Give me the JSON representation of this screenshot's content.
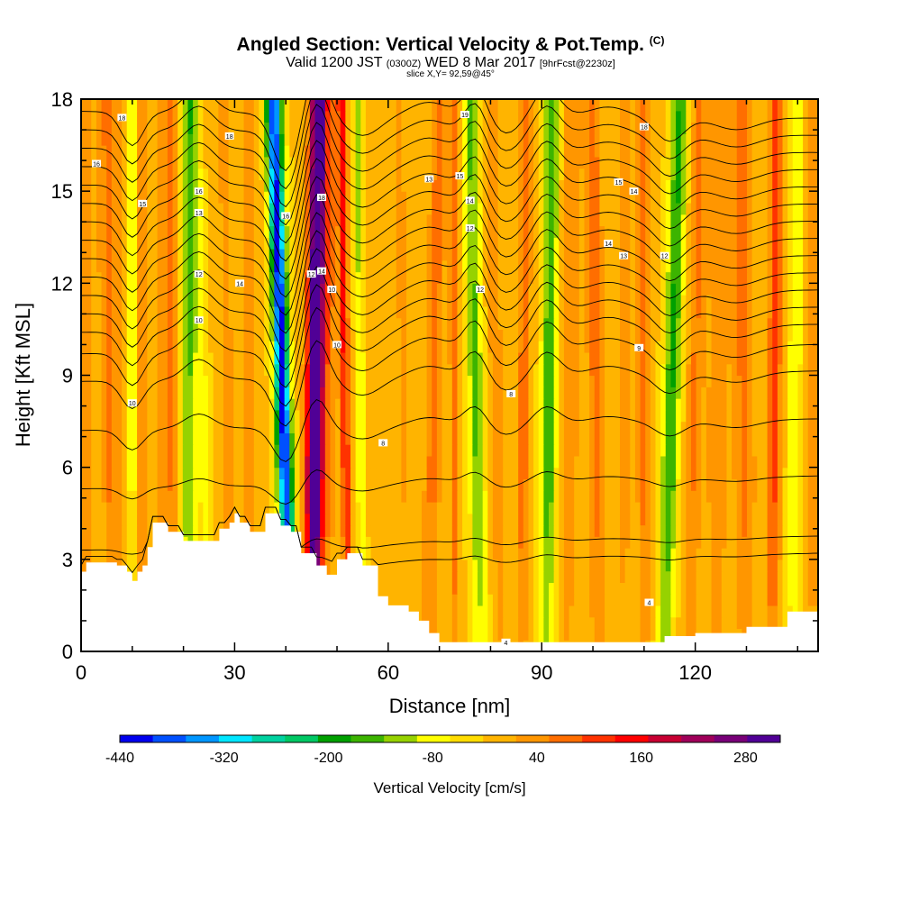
{
  "header": {
    "title_main": "Angled Section: Vertical Velocity & Pot.Temp.",
    "title_suffix": "(C)",
    "valid_prefix": "Valid 1200 JST",
    "valid_utc": "(0300Z)",
    "valid_date": "WED 8 Mar 2017",
    "valid_fcst": "[9hrFcst@2230z]",
    "slice": "slice X,Y= 92,59@45°"
  },
  "chart_data": {
    "type": "heatmap",
    "xlabel": "Distance [nm]",
    "ylabel": "Height [Kft MSL]",
    "xlim": [
      0,
      144
    ],
    "ylim": [
      0,
      18
    ],
    "x_ticks": [
      0,
      30,
      60,
      90,
      120
    ],
    "y_ticks": [
      0,
      3,
      6,
      9,
      12,
      15,
      18
    ],
    "colorbar": {
      "label": "Vertical Velocity [cm/s]",
      "tick_values": [
        -440,
        -320,
        -200,
        -80,
        40,
        160,
        280
      ],
      "bin_edges": [
        -440,
        -400,
        -360,
        -320,
        -280,
        -240,
        -200,
        -160,
        -120,
        -80,
        -40,
        0,
        40,
        80,
        120,
        160,
        200,
        240,
        280,
        320
      ],
      "colors": [
        "#0000ee",
        "#0050ff",
        "#0096ff",
        "#00e6ff",
        "#00d2a0",
        "#00c864",
        "#00a000",
        "#3cb400",
        "#96d200",
        "#ffff00",
        "#ffdc00",
        "#ffb400",
        "#ff9600",
        "#ff6e00",
        "#ff3200",
        "#ff0000",
        "#c80032",
        "#a0005a",
        "#780078",
        "#500096"
      ]
    },
    "background_velocity": 5,
    "velocity_columns": [
      {
        "x": 1,
        "v": 70,
        "w": 0.9,
        "x_top": 1
      },
      {
        "x": 3,
        "v": 30,
        "w": 1.5,
        "x_top": 3
      },
      {
        "x": 6,
        "v": 80,
        "w": 1.2,
        "x_top": 5
      },
      {
        "x": 8,
        "v": 40,
        "w": 1.5,
        "x_top": 7
      },
      {
        "x": 10,
        "v": -90,
        "w": 0.9,
        "x_top": 10
      },
      {
        "x": 12,
        "v": 80,
        "w": 1.4,
        "x_top": 12
      },
      {
        "x": 16,
        "v": 55,
        "w": 1.6,
        "x_top": 16
      },
      {
        "x": 18,
        "v": 70,
        "w": 1.2,
        "x_top": 18
      },
      {
        "x": 21,
        "v": -130,
        "w": 1.4,
        "x_top": 21
      },
      {
        "x": 25,
        "v": -70,
        "w": 1.2,
        "x_top": 22
      },
      {
        "x": 29,
        "v": 60,
        "w": 1.2,
        "x_top": 28
      },
      {
        "x": 33,
        "v": 55,
        "w": 1.5,
        "x_top": 33
      },
      {
        "x": 40.5,
        "v": -250,
        "w": 1.5,
        "x_top": 38
      },
      {
        "x": 41.5,
        "v": -190,
        "w": 1.3,
        "x_top": 37
      },
      {
        "x": 44.5,
        "v": 180,
        "w": 1.6,
        "x_top": 46
      },
      {
        "x": 45.5,
        "v": 270,
        "w": 1.3,
        "x_top": 46.5
      },
      {
        "x": 47,
        "v": 90,
        "w": 2.0,
        "x_top": 49
      },
      {
        "x": 52,
        "v": 170,
        "w": 0.8,
        "x_top": 51
      },
      {
        "x": 55,
        "v": -90,
        "w": 0.8,
        "x_top": 54
      },
      {
        "x": 64,
        "v": 40,
        "w": 2.0,
        "x_top": 62
      },
      {
        "x": 68,
        "v": 90,
        "w": 1.6,
        "x_top": 70
      },
      {
        "x": 73,
        "v": 110,
        "w": 0.9,
        "x_top": 73
      },
      {
        "x": 78,
        "v": -130,
        "w": 1.6,
        "x_top": 76
      },
      {
        "x": 82,
        "v": 60,
        "w": 1.5,
        "x_top": 80
      },
      {
        "x": 86,
        "v": 100,
        "w": 1.2,
        "x_top": 87
      },
      {
        "x": 91,
        "v": -160,
        "w": 1.5,
        "x_top": 92
      },
      {
        "x": 95,
        "v": 60,
        "w": 2.0,
        "x_top": 96
      },
      {
        "x": 101,
        "v": 90,
        "w": 1.6,
        "x_top": 100
      },
      {
        "x": 106,
        "v": 50,
        "w": 2.0,
        "x_top": 106
      },
      {
        "x": 110,
        "v": 90,
        "w": 1.2,
        "x_top": 110
      },
      {
        "x": 114,
        "v": -170,
        "w": 1.6,
        "x_top": 117
      },
      {
        "x": 119,
        "v": 80,
        "w": 1.6,
        "x_top": 121
      },
      {
        "x": 124,
        "v": 70,
        "w": 2.0,
        "x_top": 125
      },
      {
        "x": 130,
        "v": 90,
        "w": 2.0,
        "x_top": 129
      },
      {
        "x": 135,
        "v": 130,
        "w": 1.4,
        "x_top": 136
      },
      {
        "x": 139,
        "v": -80,
        "w": 1.4,
        "x_top": 140
      },
      {
        "x": 143,
        "v": 60,
        "w": 1.4,
        "x_top": 143
      }
    ],
    "terrain": [
      [
        0,
        2.6
      ],
      [
        1,
        2.9
      ],
      [
        7,
        2.8
      ],
      [
        9,
        2.6
      ],
      [
        10,
        2.3
      ],
      [
        11,
        2.6
      ],
      [
        12,
        2.8
      ],
      [
        13,
        3.4
      ],
      [
        14,
        4.2
      ],
      [
        17,
        3.9
      ],
      [
        20,
        3.6
      ],
      [
        25,
        3.6
      ],
      [
        27,
        4.0
      ],
      [
        29,
        4.2
      ],
      [
        30,
        4.5
      ],
      [
        31,
        4.2
      ],
      [
        33,
        3.9
      ],
      [
        36,
        4.5
      ],
      [
        39,
        4.1
      ],
      [
        41,
        3.9
      ],
      [
        43,
        3.2
      ],
      [
        46,
        2.8
      ],
      [
        48,
        2.5
      ],
      [
        50,
        3.0
      ],
      [
        52,
        3.2
      ],
      [
        55,
        2.8
      ],
      [
        58,
        1.8
      ],
      [
        60,
        1.5
      ],
      [
        62,
        1.5
      ],
      [
        64,
        1.3
      ],
      [
        66,
        1.0
      ],
      [
        68,
        0.6
      ],
      [
        70,
        0.3
      ],
      [
        80,
        0.3
      ],
      [
        90,
        0.3
      ],
      [
        100,
        0.3
      ],
      [
        110,
        0.3
      ],
      [
        114,
        0.5
      ],
      [
        120,
        0.6
      ],
      [
        130,
        0.8
      ],
      [
        138,
        1.3
      ],
      [
        144,
        1.4
      ]
    ],
    "isentropes": {
      "base_heights": [
        2.7,
        3.3,
        5.3,
        7.2,
        8.8,
        9.7,
        10.4,
        11.0,
        11.6,
        12.2,
        12.8,
        13.4,
        14.0,
        14.6,
        15.2,
        15.8,
        16.4,
        17.0,
        17.6
      ],
      "labels": [
        {
          "x": 8,
          "y": 17.4,
          "text": "18"
        },
        {
          "x": 3,
          "y": 15.9,
          "text": "16"
        },
        {
          "x": 12,
          "y": 14.6,
          "text": "15"
        },
        {
          "x": 29,
          "y": 16.8,
          "text": "18"
        },
        {
          "x": 23,
          "y": 15.0,
          "text": "16"
        },
        {
          "x": 23,
          "y": 14.3,
          "text": "13"
        },
        {
          "x": 23,
          "y": 12.3,
          "text": "12"
        },
        {
          "x": 31,
          "y": 12.0,
          "text": "14"
        },
        {
          "x": 23,
          "y": 10.8,
          "text": "10"
        },
        {
          "x": 10,
          "y": 8.1,
          "text": "10"
        },
        {
          "x": 40,
          "y": 14.2,
          "text": "16"
        },
        {
          "x": 47,
          "y": 14.8,
          "text": "18"
        },
        {
          "x": 45,
          "y": 12.3,
          "text": "12"
        },
        {
          "x": 47,
          "y": 12.4,
          "text": "14"
        },
        {
          "x": 49,
          "y": 11.8,
          "text": "10"
        },
        {
          "x": 50,
          "y": 10.0,
          "text": "10"
        },
        {
          "x": 59,
          "y": 6.8,
          "text": "8"
        },
        {
          "x": 68,
          "y": 15.4,
          "text": "13"
        },
        {
          "x": 74,
          "y": 15.5,
          "text": "15"
        },
        {
          "x": 75,
          "y": 17.5,
          "text": "19"
        },
        {
          "x": 76,
          "y": 14.7,
          "text": "14"
        },
        {
          "x": 76,
          "y": 13.8,
          "text": "12"
        },
        {
          "x": 78,
          "y": 11.8,
          "text": "12"
        },
        {
          "x": 84,
          "y": 8.4,
          "text": "8"
        },
        {
          "x": 110,
          "y": 17.1,
          "text": "18"
        },
        {
          "x": 105,
          "y": 15.3,
          "text": "15"
        },
        {
          "x": 108,
          "y": 15.0,
          "text": "14"
        },
        {
          "x": 103,
          "y": 13.3,
          "text": "14"
        },
        {
          "x": 106,
          "y": 12.9,
          "text": "13"
        },
        {
          "x": 114,
          "y": 12.9,
          "text": "12"
        },
        {
          "x": 109,
          "y": 9.9,
          "text": "9"
        },
        {
          "x": 83,
          "y": 0.3,
          "text": "4"
        },
        {
          "x": 111,
          "y": 1.6,
          "text": "4"
        }
      ]
    }
  }
}
